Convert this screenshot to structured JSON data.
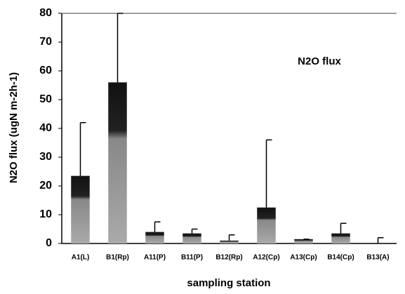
{
  "chart_data": {
    "type": "bar",
    "y_label": "N2O flux (ugN m-2h-1)",
    "x_label": "sampling station",
    "annotation": "N2O flux",
    "categories": [
      "A1(L)",
      "B1(Rp)",
      "A11(P)",
      "B11(P)",
      "B12(Rp)",
      "A12(Cp)",
      "A13(Cp)",
      "B14(Cp)",
      "B13(A)"
    ],
    "values": [
      23.5,
      56,
      4,
      3.5,
      1,
      12.5,
      1.5,
      3.5,
      0
    ],
    "errors": [
      18.5,
      24,
      3.5,
      1.5,
      2,
      23.5,
      0,
      3.5,
      2
    ],
    "color": "#8a8a8a",
    "ylim": [
      0,
      80
    ],
    "yticks": [
      0,
      10,
      20,
      30,
      40,
      50,
      60,
      70,
      80
    ],
    "grid": false
  }
}
